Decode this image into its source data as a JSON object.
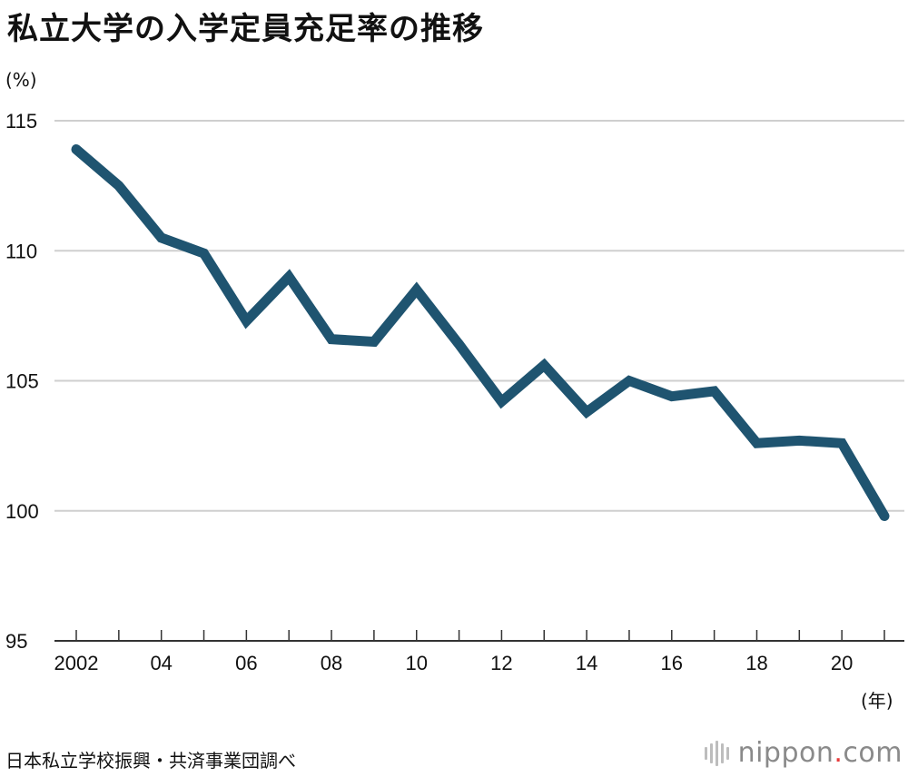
{
  "title": "私立大学の入学定員充足率の推移",
  "y_unit": "(%)",
  "x_unit": "(年)",
  "source": "日本私立学校振興・共済事業団調べ",
  "brand": {
    "name": "nippon",
    "dot": ".",
    "tld": "com"
  },
  "colors": {
    "line": "#1f5470",
    "grid": "#cfcfcf",
    "axis": "#333333",
    "brand_dot": "#e83a3a"
  },
  "chart_data": {
    "type": "line",
    "title": "私立大学の入学定員充足率の推移",
    "xlabel": "(年)",
    "ylabel": "(%)",
    "ylim": [
      95,
      115
    ],
    "yticks": [
      95,
      100,
      105,
      110,
      115
    ],
    "xlim": [
      2002,
      2021
    ],
    "xtick_values": [
      2002,
      2004,
      2006,
      2008,
      2010,
      2012,
      2014,
      2016,
      2018,
      2020
    ],
    "xtick_labels": [
      "2002",
      "04",
      "06",
      "08",
      "10",
      "12",
      "14",
      "16",
      "18",
      "20"
    ],
    "minor_xticks": [
      2003,
      2005,
      2007,
      2009,
      2011,
      2013,
      2015,
      2017,
      2019,
      2021
    ],
    "grid": true,
    "series": [
      {
        "x": [
          2002,
          2003,
          2004,
          2005,
          2006,
          2007,
          2008,
          2009,
          2010,
          2011,
          2012,
          2013,
          2014,
          2015,
          2016,
          2017,
          2018,
          2019,
          2020,
          2021
        ],
        "values": [
          113.9,
          112.5,
          110.5,
          109.9,
          107.3,
          109.0,
          106.6,
          106.5,
          108.5,
          106.4,
          104.2,
          105.6,
          103.8,
          105.0,
          104.4,
          104.6,
          102.6,
          102.7,
          102.6,
          99.8
        ]
      }
    ]
  }
}
